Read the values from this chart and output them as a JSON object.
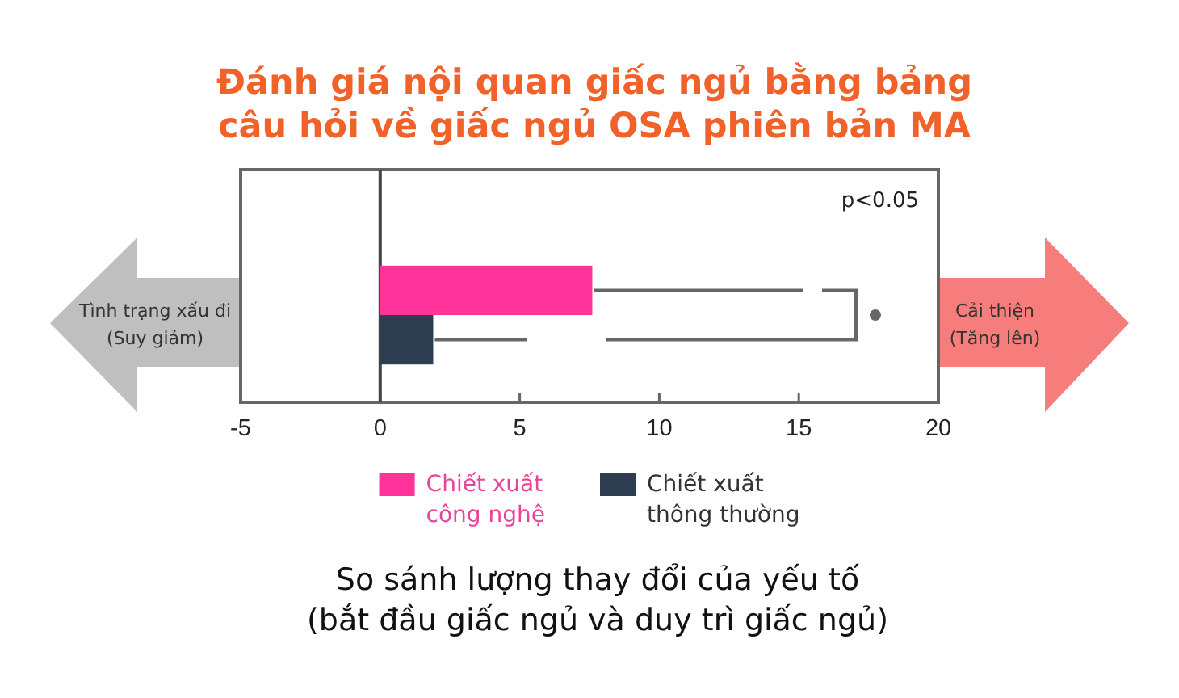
{
  "chart_data": {
    "type": "bar",
    "orientation": "horizontal",
    "title": "Đánh giá nội quan giấc ngủ bằng bảng\ncâu hỏi về giấc ngủ OSA phiên bản MA",
    "categories": [
      null
    ],
    "series": [
      {
        "name": "Chiết xuất\ncông nghệ",
        "color": "#ff3399",
        "values": [
          7.6
        ]
      },
      {
        "name": "Chiết xuất\nthông thường",
        "color": "#2e3e50",
        "values": [
          1.9
        ]
      }
    ],
    "xlim": [
      -5,
      20
    ],
    "xticks": [
      -5,
      0,
      5,
      10,
      15,
      20
    ],
    "tick_labels": "x",
    "legend": "bottom",
    "annotations": [
      "p<0.05",
      "Tình trạng xấu đi\n(Suy giảm)",
      "Cải thiện\n(Tăng lên)",
      "So sánh lượng thay đổi của yếu tố\n(bắt đầu giấc ngủ và duy trì giấc ngủ)"
    ]
  }
}
